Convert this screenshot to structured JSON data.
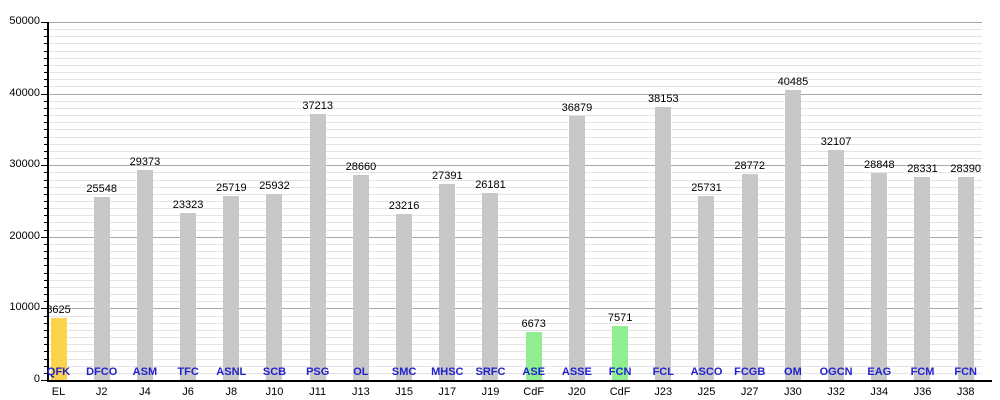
{
  "chart_data": {
    "type": "bar",
    "title": "",
    "xlabel": "",
    "ylabel": "",
    "ylim": [
      0,
      50000
    ],
    "y_major_ticks": [
      0,
      10000,
      20000,
      30000,
      40000,
      50000
    ],
    "y_minor_step": 1000,
    "grid": "on",
    "legend": "none",
    "bar_colors": {
      "default": "#c8c8c8",
      "highlight_yellow": "#fbd44b",
      "highlight_green": "#90ee90"
    },
    "text_colors": {
      "opponent_label": "#2222cc",
      "value_label": "#000000",
      "match_label": "#000000",
      "axis_tick_label": "#000000"
    },
    "bars": [
      {
        "opponent": "QFK",
        "match": "EL",
        "value": 8625,
        "color": "highlight_yellow"
      },
      {
        "opponent": "DFCO",
        "match": "J2",
        "value": 25548,
        "color": "default"
      },
      {
        "opponent": "ASM",
        "match": "J4",
        "value": 29373,
        "color": "default"
      },
      {
        "opponent": "TFC",
        "match": "J6",
        "value": 23323,
        "color": "default"
      },
      {
        "opponent": "ASNL",
        "match": "J8",
        "value": 25719,
        "color": "default"
      },
      {
        "opponent": "SCB",
        "match": "J10",
        "value": 25932,
        "color": "default"
      },
      {
        "opponent": "PSG",
        "match": "J11",
        "value": 37213,
        "color": "default"
      },
      {
        "opponent": "OL",
        "match": "J13",
        "value": 28660,
        "color": "default"
      },
      {
        "opponent": "SMC",
        "match": "J15",
        "value": 23216,
        "color": "default"
      },
      {
        "opponent": "MHSC",
        "match": "J17",
        "value": 27391,
        "color": "default"
      },
      {
        "opponent": "SRFC",
        "match": "J19",
        "value": 26181,
        "color": "default"
      },
      {
        "opponent": "ASE",
        "match": "CdF",
        "value": 6673,
        "color": "highlight_green"
      },
      {
        "opponent": "ASSE",
        "match": "J20",
        "value": 36879,
        "color": "default"
      },
      {
        "opponent": "FCN",
        "match": "CdF",
        "value": 7571,
        "color": "highlight_green"
      },
      {
        "opponent": "FCL",
        "match": "J23",
        "value": 38153,
        "color": "default"
      },
      {
        "opponent": "ASCO",
        "match": "J25",
        "value": 25731,
        "color": "default"
      },
      {
        "opponent": "FCGB",
        "match": "J27",
        "value": 28772,
        "color": "default"
      },
      {
        "opponent": "OM",
        "match": "J30",
        "value": 40485,
        "color": "default"
      },
      {
        "opponent": "OGCN",
        "match": "J32",
        "value": 32107,
        "color": "default"
      },
      {
        "opponent": "EAG",
        "match": "J34",
        "value": 28848,
        "color": "default"
      },
      {
        "opponent": "FCM",
        "match": "J36",
        "value": 28331,
        "color": "default"
      },
      {
        "opponent": "FCN",
        "match": "J38",
        "value": 28390,
        "color": "default"
      }
    ]
  }
}
